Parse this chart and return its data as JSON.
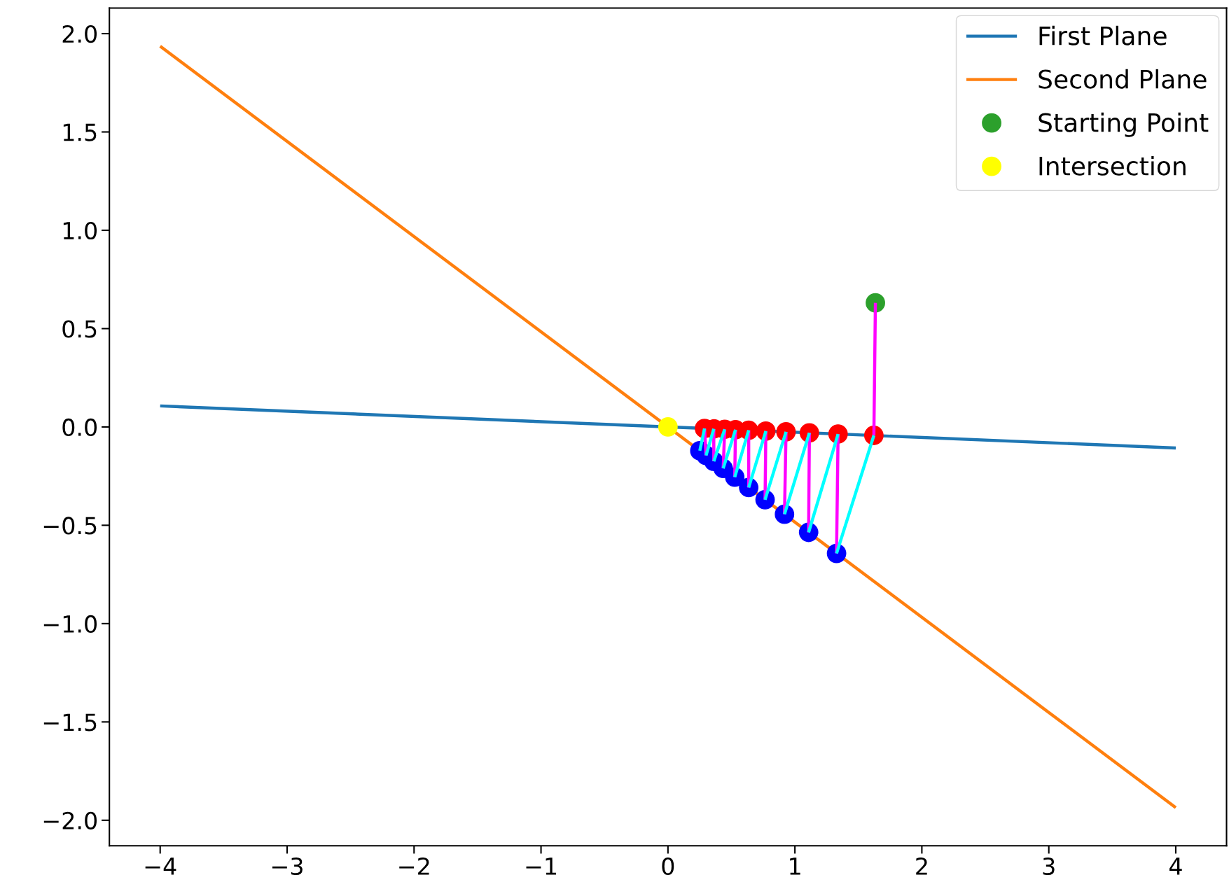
{
  "chart_data": {
    "type": "line",
    "xlim": [
      -4.4,
      4.4
    ],
    "ylim": [
      -2.13,
      2.13
    ],
    "xticks": [
      {
        "value": -4,
        "label": "−4"
      },
      {
        "value": -3,
        "label": "−3"
      },
      {
        "value": -2,
        "label": "−2"
      },
      {
        "value": -1,
        "label": "−1"
      },
      0,
      1,
      2,
      3,
      4
    ],
    "yticks": [
      {
        "value": -2.0,
        "label": "−2.0"
      },
      {
        "value": -1.5,
        "label": "−1.5"
      },
      {
        "value": -1.0,
        "label": "−1.0"
      },
      {
        "value": -0.5,
        "label": "−0.5"
      },
      {
        "value": 0.0,
        "label": "0.0"
      },
      0.5,
      {
        "value": 1.0,
        "label": "1.0"
      },
      1.5,
      {
        "value": 2.0,
        "label": "2.0"
      }
    ],
    "grid": false,
    "legend": "top right",
    "series": [
      {
        "name": "First Plane",
        "color": "#1f77b4",
        "x": [
          -4,
          4
        ],
        "values": [
          0.107,
          -0.107
        ]
      },
      {
        "name": "Second Plane",
        "color": "#ff7f0e",
        "x": [
          -4,
          4
        ],
        "values": [
          1.936,
          -1.936
        ]
      },
      {
        "name": "Starting Point",
        "type": "scatter",
        "marker": "circle",
        "color": "#2ca02c",
        "x": [
          1.634
        ],
        "values": [
          0.631
        ]
      },
      {
        "name": "Intersection",
        "type": "scatter",
        "marker": "circle",
        "color": "#ffff00",
        "x": [
          0
        ],
        "values": [
          0
        ]
      },
      {
        "type": "scatter",
        "marker": "circle",
        "color": "#ff0000",
        "x": [
          1.622,
          1.34,
          1.114,
          0.93,
          0.771,
          0.636,
          0.532,
          0.447,
          0.361,
          0.288
        ],
        "values": [
          -0.043,
          -0.036,
          -0.03,
          -0.025,
          -0.021,
          -0.017,
          -0.014,
          -0.012,
          -0.01,
          -0.008
        ]
      },
      {
        "type": "scatter",
        "marker": "circle",
        "color": "#0000ff",
        "x": [
          1.328,
          1.108,
          0.918,
          0.765,
          0.636,
          0.526,
          0.435,
          0.361,
          0.3,
          0.251
        ],
        "values": [
          -0.643,
          -0.536,
          -0.444,
          -0.37,
          -0.308,
          -0.255,
          -0.211,
          -0.175,
          -0.145,
          -0.121
        ]
      },
      {
        "color": "#ff00ff",
        "x": [
          1.634,
          1.622,
          null,
          1.328,
          1.34,
          null,
          1.108,
          1.114,
          null,
          0.918,
          0.93,
          null,
          0.765,
          0.771,
          null,
          0.636,
          0.636,
          null,
          0.526,
          0.532,
          null,
          0.435,
          0.447,
          null,
          0.361,
          0.361,
          null,
          0.3,
          0.288
        ],
        "values": [
          0.631,
          -0.043,
          null,
          -0.643,
          -0.036,
          null,
          -0.536,
          -0.03,
          null,
          -0.444,
          -0.025,
          null,
          -0.37,
          -0.021,
          null,
          -0.308,
          -0.017,
          null,
          -0.255,
          -0.014,
          null,
          -0.211,
          -0.012,
          null,
          -0.175,
          -0.01,
          null,
          -0.145,
          -0.008
        ]
      },
      {
        "color": "#00ffff",
        "x": [
          1.622,
          1.328,
          null,
          1.34,
          1.108,
          null,
          1.114,
          0.918,
          null,
          0.93,
          0.765,
          null,
          0.771,
          0.636,
          null,
          0.636,
          0.526,
          null,
          0.532,
          0.435,
          null,
          0.447,
          0.361,
          null,
          0.361,
          0.3,
          null,
          0.288,
          0.251
        ],
        "values": [
          -0.043,
          -0.643,
          null,
          -0.036,
          -0.536,
          null,
          -0.03,
          -0.444,
          null,
          -0.025,
          -0.37,
          null,
          -0.021,
          -0.308,
          null,
          -0.017,
          -0.255,
          null,
          -0.014,
          -0.211,
          null,
          -0.012,
          -0.175,
          null,
          -0.01,
          -0.145,
          null,
          -0.008,
          -0.121
        ]
      }
    ]
  }
}
